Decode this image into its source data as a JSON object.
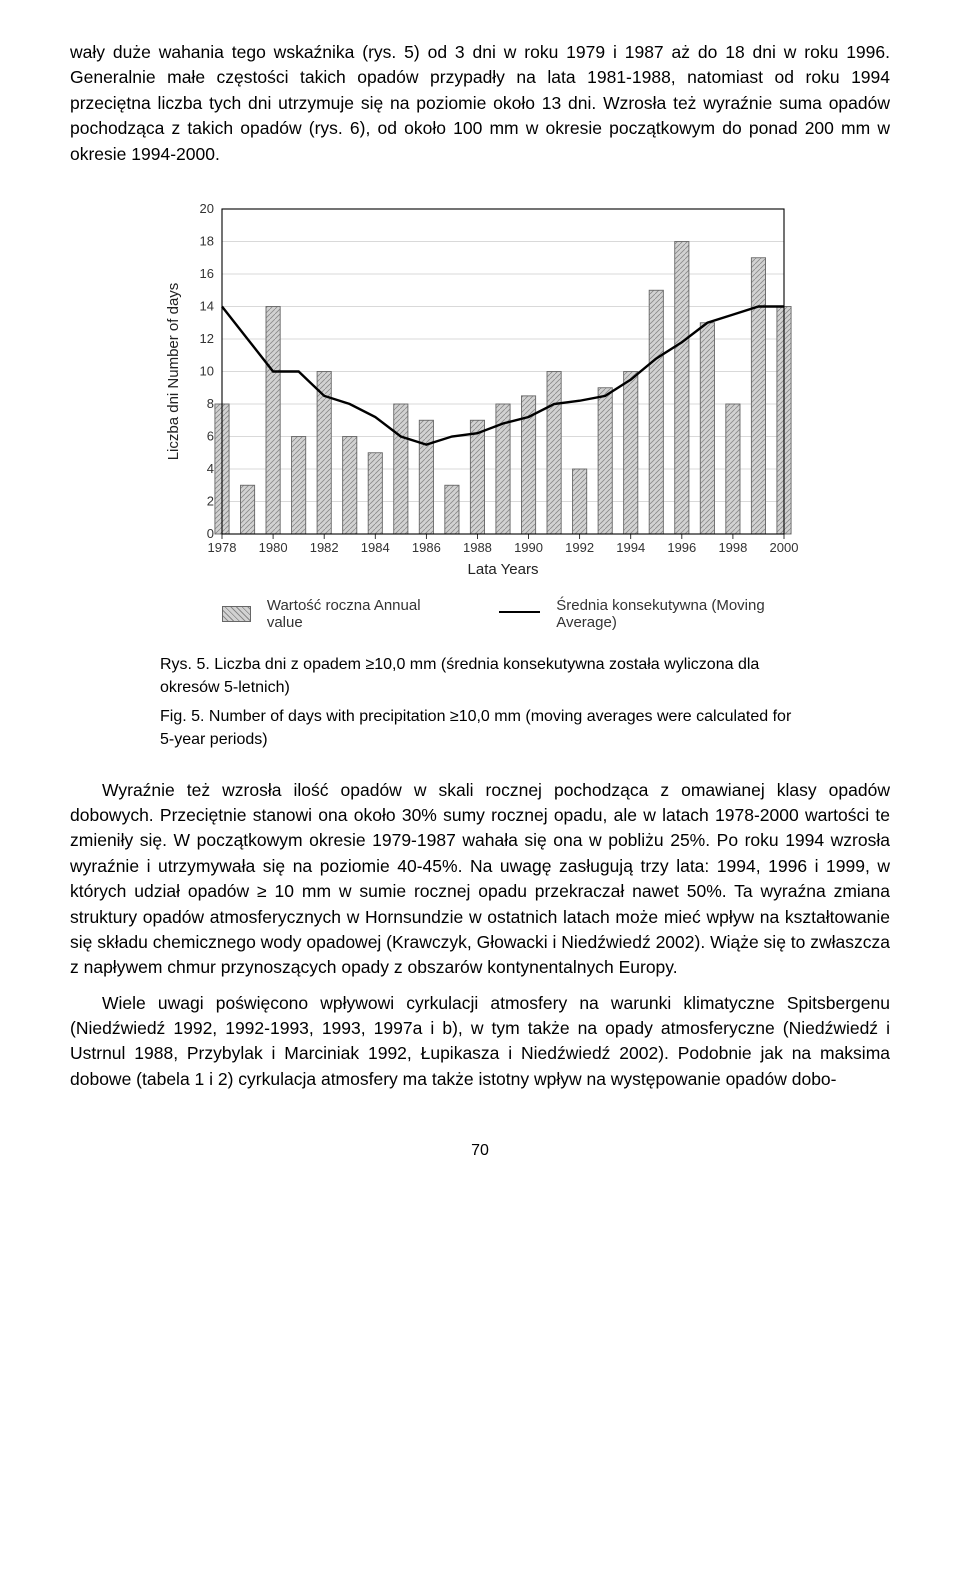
{
  "paragraphs": {
    "p1": "wały duże wahania tego wskaźnika (rys. 5) od 3 dni w roku 1979 i 1987 aż do 18 dni w roku 1996. Generalnie małe częstości takich opadów przypadły na lata 1981-1988, natomiast od roku 1994 przeciętna liczba tych dni utrzymuje się na poziomie około 13 dni. Wzrosła też wyraźnie suma opadów pochodząca z takich opadów (rys. 6), od około 100 mm w okresie początkowym do ponad 200 mm w okresie 1994-2000.",
    "p2": "Wyraźnie też wzrosła ilość opadów w skali rocznej pochodząca z omawianej klasy opadów dobowych. Przeciętnie stanowi ona około 30% sumy rocznej opadu, ale w latach 1978-2000 wartości te zmieniły się. W początkowym okresie 1979-1987 wahała się ona w pobliżu 25%. Po roku 1994 wzrosła wyraźnie i utrzymywała się na poziomie 40-45%. Na uwagę zasługują trzy lata: 1994, 1996 i 1999, w których udział opadów ≥ 10 mm w sumie rocznej opadu przekraczał nawet 50%. Ta wyraźna zmiana struktury opadów atmosferycznych w Hornsundzie w ostatnich latach może mieć wpływ na kształtowanie się składu chemicznego wody opadowej (Krawczyk, Głowacki i Niedźwiedź 2002). Wiąże się to zwłaszcza z napływem chmur przynoszących opady z obszarów kontynentalnych Europy.",
    "p3": "Wiele uwagi poświęcono wpływowi cyrkulacji atmosfery na warunki klimatyczne Spitsbergenu (Niedźwiedź 1992, 1992-1993, 1993, 1997a i b), w tym także na opady atmosferyczne (Niedźwiedź i Ustrnul 1988, Przybylak i Marciniak 1992, Łupikasza i Niedźwiedź 2002). Podobnie jak na maksima dobowe (tabela 1 i 2) cyrkulacja atmosfery ma także istotny wpływ na występowanie opadów dobo-"
  },
  "chart": {
    "type": "bar+line",
    "x_labels": [
      "1978",
      "1980",
      "1982",
      "1984",
      "1986",
      "1988",
      "1990",
      "1992",
      "1994",
      "1996",
      "1998",
      "2000"
    ],
    "y_axis_label": "Liczba dni  Number of days",
    "x_axis_label": "Lata   Years",
    "ylim": [
      0,
      20
    ],
    "ytick_step": 2,
    "yticks": [
      0,
      2,
      4,
      6,
      8,
      10,
      12,
      14,
      16,
      18,
      20
    ],
    "grid_color": "#cccccc",
    "axis_color": "#000000",
    "bg_color": "#ffffff",
    "legend_bar_label": "Wartość roczna   Annual value",
    "legend_line_label": "Średnia konsekutywna (Moving Average)",
    "bar_fill": "#d2d2d2",
    "bar_hatch_color": "#888888",
    "bar_border": "#666666",
    "line_color": "#000000",
    "line_width": 2.4,
    "label_fontsize": 15,
    "tick_fontsize": 13,
    "bars": {
      "years": [
        1978,
        1979,
        1980,
        1981,
        1982,
        1983,
        1984,
        1985,
        1986,
        1987,
        1988,
        1989,
        1990,
        1991,
        1992,
        1993,
        1994,
        1995,
        1996,
        1997,
        1998,
        1999,
        2000
      ],
      "values": [
        8,
        3,
        14,
        6,
        10,
        6,
        5,
        8,
        7,
        3,
        7,
        8,
        8.5,
        10,
        4,
        9,
        10,
        15,
        18,
        13,
        8,
        17,
        14
      ]
    },
    "moving_avg": {
      "years": [
        1978,
        1979,
        1980,
        1981,
        1982,
        1983,
        1984,
        1985,
        1986,
        1987,
        1988,
        1989,
        1990,
        1991,
        1992,
        1993,
        1994,
        1995,
        1996,
        1997,
        1998,
        1999,
        2000
      ],
      "values": [
        14,
        12,
        10,
        10,
        8.5,
        8,
        7.2,
        6,
        5.5,
        6,
        6.2,
        6.8,
        7.2,
        8,
        8.2,
        8.5,
        9.5,
        10.8,
        11.8,
        13,
        13.5,
        14,
        14
      ]
    }
  },
  "captions": {
    "cap1": "Rys. 5. Liczba dni z opadem ≥10,0 mm (średnia konsekutywna została wyliczona dla okresów 5-letnich)",
    "cap2": "Fig. 5. Number of days with precipitation ≥10,0 mm (moving averages were calculated for 5-year periods)"
  },
  "page_number": "70"
}
